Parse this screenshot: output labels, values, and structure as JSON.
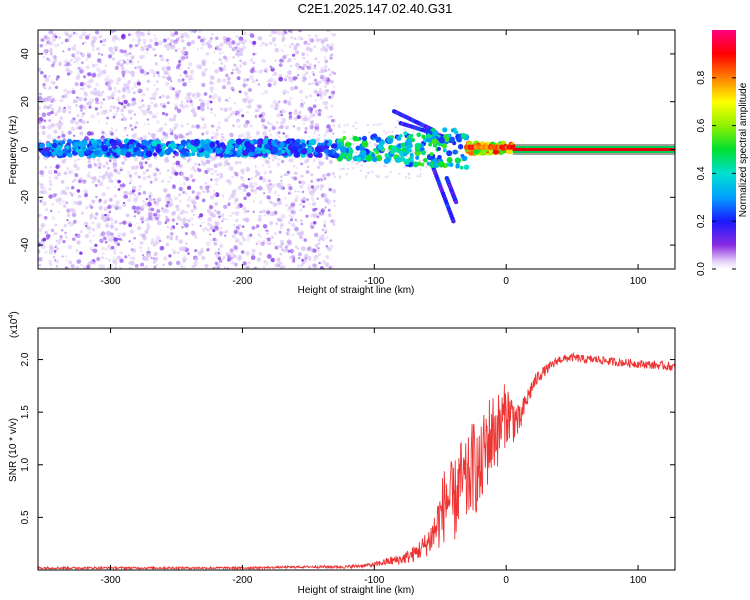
{
  "title": "C2E1.2025.147.02.40.G31",
  "colors": {
    "signal_line": "#e8000b",
    "snr_line": "#ee3333",
    "scatter_light": "#d9c2f5",
    "scatter_mid": "#9a5cf0",
    "scatter_dark": "#6a16e6"
  },
  "chart_data": [
    {
      "type": "heatmap",
      "title": "C2E1.2025.147.02.40.G31",
      "xlabel": "Height of straight line (km)",
      "ylabel": "Frequency (Hz)",
      "xlim": [
        -355,
        128
      ],
      "ylim": [
        -50,
        50
      ],
      "x_ticks": [
        -300,
        -200,
        -100,
        0,
        100
      ],
      "y_ticks": [
        -40,
        -20,
        0,
        20,
        40
      ],
      "grid": false,
      "colorbar": {
        "label": "Normalized spectral amplitude",
        "range": [
          0,
          1
        ],
        "ticks": [
          0.0,
          0.2,
          0.4,
          0.6,
          0.8
        ],
        "tick_labels": [
          "0.0",
          "0.2",
          "0.4",
          "0.6",
          "0.8"
        ],
        "colormap": "rainbow"
      },
      "features": [
        {
          "name": "carrier line",
          "x_range": [
            -355,
            128
          ],
          "frequency_hz": 0.5
        },
        {
          "name": "strong carrier segment",
          "x_range": [
            -30,
            5
          ],
          "frequency_hz": 1,
          "amplitude": 0.85
        },
        {
          "name": "clean carrier",
          "x_range": [
            5,
            128
          ],
          "frequency_hz": 0,
          "amplitude": 1.0
        }
      ]
    },
    {
      "type": "line",
      "xlabel": "Height of straight line (km)",
      "ylabel": "SNR (10 * v/v)",
      "y_multiplier": "(x10",
      "y_multiplier_exp": "4",
      "xlim": [
        -355,
        128
      ],
      "ylim": [
        0,
        2.3
      ],
      "x_ticks": [
        -300,
        -200,
        -100,
        0,
        100
      ],
      "y_ticks": [
        0.5,
        1.0,
        1.5,
        2.0
      ],
      "grid": false,
      "series": [
        {
          "x": [
            -355,
            -300,
            -250,
            -200,
            -150,
            -120,
            -100,
            -90,
            -80,
            -70,
            -60,
            -55,
            -50,
            -45,
            -40,
            -35,
            -30,
            -25,
            -20,
            -15,
            -10,
            -5,
            0,
            5,
            10,
            15,
            20,
            25,
            30,
            40,
            50,
            60,
            70,
            80,
            90,
            100,
            110,
            120,
            128
          ],
          "y": [
            0.02,
            0.02,
            0.02,
            0.02,
            0.03,
            0.03,
            0.05,
            0.08,
            0.1,
            0.15,
            0.25,
            0.35,
            0.5,
            0.7,
            0.6,
            0.85,
            0.8,
            1.0,
            0.9,
            1.2,
            1.3,
            1.35,
            1.5,
            1.45,
            1.4,
            1.6,
            1.75,
            1.85,
            1.9,
            2.0,
            2.02,
            2.0,
            2.0,
            1.98,
            1.97,
            1.96,
            1.95,
            1.94,
            1.93
          ],
          "noise_amplitude": [
            0.01,
            0.01,
            0.01,
            0.01,
            0.01,
            0.015,
            0.02,
            0.04,
            0.05,
            0.08,
            0.12,
            0.2,
            0.3,
            0.4,
            0.4,
            0.4,
            0.4,
            0.45,
            0.4,
            0.45,
            0.4,
            0.35,
            0.3,
            0.25,
            0.15,
            0.1,
            0.08,
            0.06,
            0.05,
            0.04,
            0.04,
            0.04,
            0.04,
            0.04,
            0.04,
            0.04,
            0.04,
            0.04,
            0.04
          ]
        }
      ]
    }
  ]
}
